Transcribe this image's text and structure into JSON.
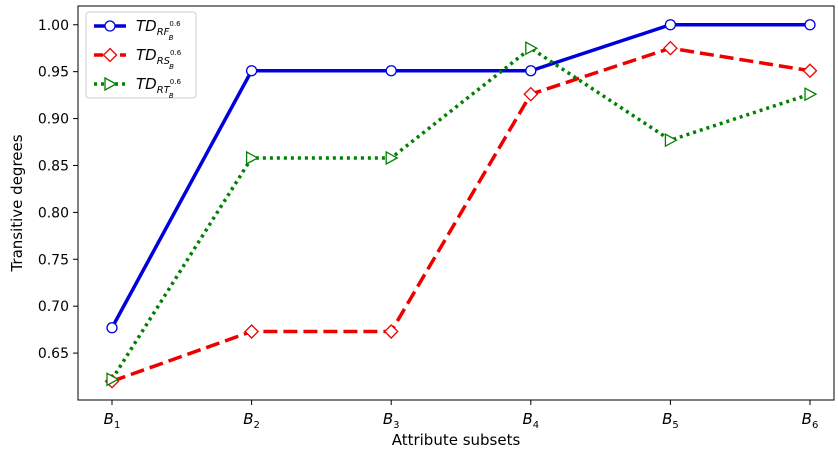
{
  "chart_data": {
    "type": "line",
    "xlabel": "Attribute subsets",
    "ylabel": "Transitive degrees",
    "categories": [
      {
        "base": "B",
        "sub": "1"
      },
      {
        "base": "B",
        "sub": "2"
      },
      {
        "base": "B",
        "sub": "3"
      },
      {
        "base": "B",
        "sub": "4"
      },
      {
        "base": "B",
        "sub": "5"
      },
      {
        "base": "B",
        "sub": "6"
      }
    ],
    "ylim": [
      0.6,
      1.02
    ],
    "yticks": [
      "0.65",
      "0.70",
      "0.75",
      "0.80",
      "0.85",
      "0.90",
      "0.95",
      "1.00"
    ],
    "legend_position": "top-left",
    "series": [
      {
        "name": {
          "base": "TD",
          "sub": "RF",
          "sup": "0.6",
          "subsub": "B"
        },
        "values": [
          0.677,
          0.951,
          0.951,
          0.951,
          1.0,
          1.0
        ],
        "color": "#0000dd",
        "marker": "circle",
        "line_style": "solid"
      },
      {
        "name": {
          "base": "TD",
          "sub": "RS",
          "sup": "0.6",
          "subsub": "B"
        },
        "values": [
          0.62,
          0.673,
          0.673,
          0.926,
          0.975,
          0.951
        ],
        "color": "#ee0000",
        "marker": "diamond",
        "line_style": "dashed"
      },
      {
        "name": {
          "base": "TD",
          "sub": "RT",
          "sup": "0.6",
          "subsub": "B"
        },
        "values": [
          0.622,
          0.858,
          0.858,
          0.975,
          0.877,
          0.926
        ],
        "color": "#008000",
        "marker": "triangle-right",
        "line_style": "dotted"
      }
    ]
  }
}
